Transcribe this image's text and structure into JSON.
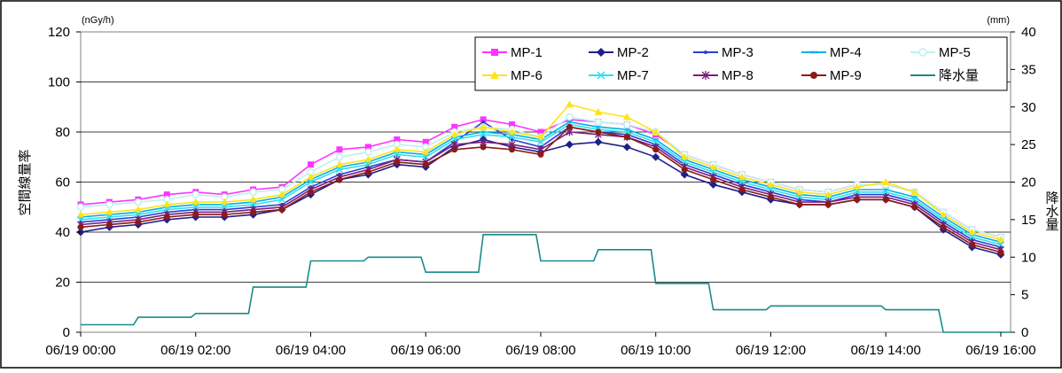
{
  "chart_data": {
    "type": "line",
    "y_label": "空間線量率",
    "y_unit": "(nGy/h)",
    "y2_label": "降水量",
    "y2_unit": "(mm)",
    "ylim": [
      0,
      120
    ],
    "y_ticks": [
      0,
      20,
      40,
      60,
      80,
      100,
      120
    ],
    "y2lim": [
      0,
      40
    ],
    "y2_ticks": [
      0,
      5,
      10,
      15,
      20,
      25,
      30,
      35,
      40
    ],
    "x_range_hours": [
      0,
      16.17
    ],
    "x_ticks": [
      {
        "label": "06/19 00:00",
        "h": 0
      },
      {
        "label": "06/19 02:00",
        "h": 2
      },
      {
        "label": "06/19 04:00",
        "h": 4
      },
      {
        "label": "06/19 06:00",
        "h": 6
      },
      {
        "label": "06/19 08:00",
        "h": 8
      },
      {
        "label": "06/19 10:00",
        "h": 10
      },
      {
        "label": "06/19 12:00",
        "h": 12
      },
      {
        "label": "06/19 14:00",
        "h": 14
      },
      {
        "label": "06/19 16:00",
        "h": 16
      }
    ],
    "grid": "horizontal",
    "legend_position": "top-right",
    "series_style": [
      {
        "name": "MP-1",
        "color": "#ff33ff",
        "marker": "square"
      },
      {
        "name": "MP-2",
        "color": "#1f1f8c",
        "marker": "diamond"
      },
      {
        "name": "MP-3",
        "color": "#2a3fd6",
        "marker": "dot"
      },
      {
        "name": "MP-4",
        "color": "#00b0e8",
        "marker": "dash"
      },
      {
        "name": "MP-5",
        "color": "#bff0f0",
        "marker": "circle-open"
      },
      {
        "name": "MP-6",
        "color": "#ffe31a",
        "marker": "triangle"
      },
      {
        "name": "MP-7",
        "color": "#33ddee",
        "marker": "x"
      },
      {
        "name": "MP-8",
        "color": "#7a1f7a",
        "marker": "star"
      },
      {
        "name": "MP-9",
        "color": "#8b1a1a",
        "marker": "circle"
      },
      {
        "name": "降水量",
        "color": "#1a8a8a",
        "marker": "none"
      }
    ],
    "dose_time_hours": [
      0,
      0.5,
      1,
      1.5,
      2,
      2.5,
      3,
      3.5,
      4,
      4.5,
      5,
      5.5,
      6,
      6.5,
      7,
      7.5,
      8,
      8.5,
      9,
      9.5,
      10,
      10.5,
      11,
      11.5,
      12,
      12.5,
      13,
      13.5,
      14,
      14.5,
      15,
      15.5,
      16
    ],
    "series": [
      {
        "name": "MP-1",
        "values": [
          51,
          52,
          53,
          55,
          56,
          55,
          57,
          58,
          67,
          73,
          74,
          77,
          76,
          82,
          85,
          83,
          80,
          85,
          84,
          83,
          79,
          71,
          67,
          63,
          60,
          57,
          56,
          59,
          59,
          56,
          48,
          41,
          38
        ]
      },
      {
        "name": "MP-2",
        "values": [
          40,
          42,
          43,
          45,
          46,
          46,
          47,
          49,
          55,
          61,
          63,
          67,
          66,
          74,
          77,
          74,
          72,
          75,
          76,
          74,
          70,
          63,
          59,
          56,
          53,
          51,
          51,
          53,
          53,
          50,
          41,
          34,
          31
        ]
      },
      {
        "name": "MP-3",
        "values": [
          44,
          45,
          46,
          48,
          49,
          49,
          50,
          51,
          58,
          63,
          66,
          69,
          68,
          76,
          84,
          77,
          74,
          82,
          80,
          79,
          75,
          67,
          63,
          59,
          56,
          53,
          52,
          55,
          55,
          52,
          44,
          37,
          34
        ]
      },
      {
        "name": "MP-4",
        "values": [
          46,
          47,
          48,
          50,
          51,
          51,
          52,
          54,
          61,
          66,
          68,
          72,
          71,
          78,
          80,
          79,
          77,
          84,
          82,
          81,
          77,
          69,
          65,
          61,
          58,
          55,
          54,
          57,
          57,
          54,
          46,
          39,
          36
        ]
      },
      {
        "name": "MP-5",
        "values": [
          50,
          51,
          52,
          53,
          55,
          54,
          56,
          57,
          64,
          70,
          72,
          75,
          74,
          80,
          82,
          81,
          78,
          86,
          84,
          83,
          80,
          71,
          67,
          63,
          60,
          57,
          56,
          59,
          59,
          56,
          48,
          41,
          38
        ]
      },
      {
        "name": "MP-6",
        "values": [
          47,
          48,
          49,
          51,
          52,
          52,
          53,
          55,
          62,
          67,
          69,
          73,
          72,
          79,
          82,
          80,
          78,
          91,
          88,
          86,
          80,
          70,
          66,
          62,
          59,
          56,
          55,
          58,
          60,
          56,
          47,
          40,
          37
        ]
      },
      {
        "name": "MP-7",
        "values": [
          45,
          46,
          47,
          49,
          50,
          50,
          51,
          53,
          60,
          65,
          67,
          71,
          70,
          77,
          79,
          78,
          76,
          83,
          81,
          80,
          76,
          68,
          64,
          60,
          57,
          54,
          53,
          56,
          56,
          53,
          45,
          38,
          35
        ]
      },
      {
        "name": "MP-8",
        "values": [
          43,
          44,
          45,
          47,
          48,
          48,
          49,
          50,
          57,
          62,
          65,
          69,
          68,
          75,
          76,
          75,
          73,
          80,
          79,
          78,
          74,
          66,
          62,
          58,
          55,
          52,
          52,
          54,
          54,
          51,
          43,
          36,
          33
        ]
      },
      {
        "name": "MP-9",
        "values": [
          42,
          43,
          44,
          46,
          47,
          47,
          48,
          49,
          56,
          61,
          64,
          68,
          67,
          73,
          74,
          73,
          71,
          82,
          80,
          78,
          73,
          65,
          61,
          57,
          54,
          51,
          51,
          53,
          53,
          50,
          42,
          35,
          32
        ]
      }
    ],
    "precipitation": {
      "name": "降水量",
      "x": [
        0,
        0.92,
        1.0,
        1.92,
        2.0,
        2.92,
        3.0,
        3.92,
        4.0,
        4.92,
        5.0,
        5.92,
        6.0,
        6.92,
        7.0,
        7.92,
        8.0,
        8.92,
        9.0,
        9.92,
        10.0,
        10.92,
        11.0,
        11.92,
        12.0,
        12.92,
        13.0,
        13.92,
        14.0,
        14.92,
        15.0,
        16.17
      ],
      "values": [
        1,
        1,
        2,
        2,
        2.5,
        2.5,
        6,
        6,
        9.5,
        9.5,
        10,
        10,
        8,
        8,
        13,
        13,
        9.5,
        9.5,
        11,
        11,
        6.5,
        6.5,
        3,
        3,
        3.5,
        3.5,
        3.5,
        3.5,
        3,
        3,
        0,
        0
      ]
    }
  }
}
